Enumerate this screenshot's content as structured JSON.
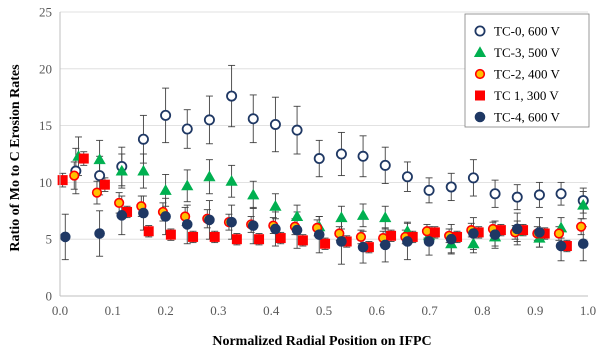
{
  "chart_data": {
    "type": "scatter",
    "title": "",
    "xlabel": "Normalized Radial Position on IFPC",
    "ylabel": "Ratio of Mo to C Erosion Rates",
    "xlim": [
      0,
      1
    ],
    "ylim": [
      0,
      25
    ],
    "xticks": [
      "0.0",
      "0.1",
      "0.2",
      "0.3",
      "0.4",
      "0.5",
      "0.6",
      "0.7",
      "0.8",
      "0.9",
      "1.0"
    ],
    "yticks": [
      "0",
      "5",
      "10",
      "15",
      "20",
      "25"
    ],
    "grid": "horizontal",
    "legend_position": "top-right",
    "series": [
      {
        "name": "TC-0, 600 V",
        "marker": "circle-open",
        "color": "#1f3864",
        "x": [
          0.03,
          0.075,
          0.117,
          0.158,
          0.2,
          0.241,
          0.283,
          0.325,
          0.366,
          0.408,
          0.449,
          0.491,
          0.533,
          0.574,
          0.616,
          0.658,
          0.699,
          0.741,
          0.783,
          0.824,
          0.866,
          0.908,
          0.949,
          0.991
        ],
        "y": [
          11.0,
          10.6,
          11.4,
          13.8,
          15.9,
          14.7,
          15.5,
          17.6,
          15.6,
          15.1,
          14.6,
          12.1,
          12.5,
          12.3,
          11.5,
          10.5,
          9.3,
          9.6,
          10.4,
          9.0,
          8.7,
          8.9,
          9.0,
          8.4
        ],
        "err": [
          2.0,
          1.7,
          1.7,
          2.1,
          2.4,
          1.7,
          2.1,
          2.7,
          2.1,
          2.4,
          2.1,
          1.6,
          1.9,
          1.8,
          1.6,
          1.3,
          1.1,
          1.2,
          1.6,
          1.2,
          1.1,
          1.1,
          1.0,
          1.1
        ]
      },
      {
        "name": "TC-3, 500 V",
        "marker": "triangle",
        "color": "#00b050",
        "x": [
          0.035,
          0.075,
          0.117,
          0.158,
          0.2,
          0.241,
          0.283,
          0.325,
          0.366,
          0.408,
          0.449,
          0.491,
          0.533,
          0.574,
          0.616,
          0.658,
          0.699,
          0.741,
          0.783,
          0.824,
          0.866,
          0.908,
          0.949,
          0.991
        ],
        "y": [
          12.3,
          12.0,
          11.0,
          11.0,
          9.3,
          9.7,
          10.5,
          10.1,
          8.9,
          7.9,
          7.0,
          6.1,
          6.9,
          7.1,
          6.9,
          5.7,
          5.3,
          4.6,
          4.6,
          5.2,
          5.7,
          5.1,
          6.0,
          8.0
        ],
        "err": [
          1.7,
          1.7,
          1.5,
          1.5,
          1.4,
          1.4,
          1.5,
          1.4,
          1.2,
          1.1,
          1.0,
          0.9,
          1.0,
          1.0,
          1.0,
          0.8,
          0.8,
          0.8,
          0.8,
          0.8,
          0.9,
          0.8,
          0.9,
          1.2
        ]
      },
      {
        "name": "TC-2, 400 V",
        "marker": "circle-ring",
        "color": "#ff0000",
        "fill": "#ffc000",
        "x": [
          0.027,
          0.07,
          0.112,
          0.154,
          0.195,
          0.237,
          0.279,
          0.32,
          0.362,
          0.404,
          0.445,
          0.487,
          0.529,
          0.57,
          0.612,
          0.654,
          0.695,
          0.737,
          0.779,
          0.82,
          0.862,
          0.904,
          0.945,
          0.987
        ],
        "y": [
          10.6,
          9.1,
          8.2,
          7.9,
          7.4,
          7.0,
          6.8,
          6.5,
          6.3,
          6.2,
          6.1,
          6.0,
          5.5,
          5.2,
          5.1,
          5.2,
          5.7,
          5.3,
          5.8,
          5.9,
          5.6,
          5.5,
          5.5,
          6.1
        ],
        "err": [
          1.2,
          1.0,
          0.9,
          0.9,
          0.8,
          0.8,
          0.8,
          0.7,
          0.7,
          0.7,
          0.7,
          0.7,
          0.6,
          0.6,
          0.6,
          0.6,
          0.6,
          0.6,
          0.6,
          0.6,
          0.6,
          0.6,
          0.6,
          0.7
        ]
      },
      {
        "name": "TC 1, 300 V",
        "marker": "square",
        "color": "#ff0000",
        "x": [
          0.005,
          0.045,
          0.085,
          0.127,
          0.168,
          0.21,
          0.252,
          0.293,
          0.335,
          0.377,
          0.418,
          0.46,
          0.502,
          0.543,
          0.585,
          0.627,
          0.668,
          0.71,
          0.752,
          0.793,
          0.835,
          0.877,
          0.918,
          0.96
        ],
        "y": [
          10.2,
          12.1,
          9.8,
          7.4,
          5.7,
          5.4,
          5.2,
          5.2,
          5.0,
          5.0,
          5.1,
          4.9,
          4.6,
          4.8,
          4.3,
          5.3,
          5.2,
          5.6,
          5.2,
          5.6,
          5.8,
          5.8,
          5.5,
          4.4
        ],
        "err": [
          0.6,
          0.6,
          0.6,
          0.5,
          0.5,
          0.5,
          0.5,
          0.5,
          0.5,
          0.5,
          0.5,
          0.5,
          0.5,
          0.5,
          0.5,
          0.5,
          0.5,
          0.5,
          0.5,
          0.5,
          0.5,
          0.5,
          0.5,
          0.5
        ]
      },
      {
        "name": "TC-4, 600 V",
        "marker": "circle-filled",
        "color": "#1f3864",
        "x": [
          0.01,
          0.075,
          0.117,
          0.158,
          0.2,
          0.241,
          0.283,
          0.325,
          0.366,
          0.408,
          0.449,
          0.491,
          0.533,
          0.574,
          0.616,
          0.658,
          0.699,
          0.741,
          0.783,
          0.824,
          0.866,
          0.908,
          0.949,
          0.991
        ],
        "y": [
          5.2,
          5.5,
          7.1,
          7.3,
          7.0,
          6.3,
          6.7,
          6.5,
          6.2,
          5.9,
          5.8,
          5.4,
          4.8,
          4.3,
          4.5,
          4.8,
          4.8,
          5.0,
          5.5,
          5.4,
          5.9,
          5.6,
          4.4,
          4.6
        ],
        "err": [
          2.0,
          2.0,
          1.7,
          1.5,
          1.6,
          1.7,
          1.7,
          1.5,
          1.6,
          1.5,
          1.6,
          1.6,
          2.0,
          1.4,
          1.5,
          1.6,
          1.2,
          1.3,
          1.4,
          1.2,
          1.4,
          1.3,
          1.3,
          1.5
        ]
      }
    ]
  }
}
